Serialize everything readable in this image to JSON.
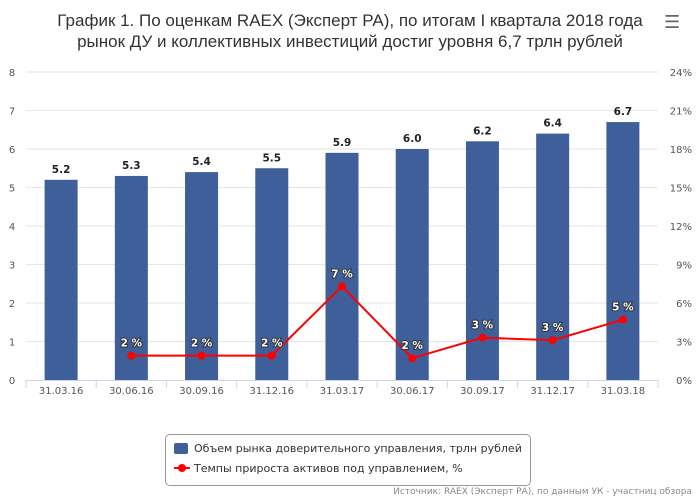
{
  "title": "График 1. По оценкам RAEX (Эксперт РА), по итогам I квартала 2018 года рынок ДУ и коллективных инвестиций достиг уровня 6,7 трлн рублей",
  "menu_icon": "hamburger-icon",
  "source": "Источник: RAEX (Эксперт РА), по данным УК - участниц обзора",
  "chart_data": {
    "type": "bar+line",
    "categories": [
      "31.03.16",
      "30.06.16",
      "30.09.16",
      "31.12.16",
      "31.03.17",
      "30.06.17",
      "30.09.17",
      "31.12.17",
      "31.03.18"
    ],
    "series": [
      {
        "name": "Объем рынка доверительного управления, трлн рублей",
        "type": "bar",
        "axis": "left",
        "color": "#3f5f9a",
        "values": [
          5.2,
          5.3,
          5.4,
          5.5,
          5.9,
          6.0,
          6.2,
          6.4,
          6.7
        ],
        "labels": [
          "5.2",
          "5.3",
          "5.4",
          "5.5",
          "5.9",
          "6.0",
          "6.2",
          "6.4",
          "6.7"
        ]
      },
      {
        "name": "Темпы прироста активов под управлением, %",
        "type": "line",
        "axis": "right",
        "color": "#ff0000",
        "values": [
          null,
          1.9,
          1.9,
          1.9,
          7.3,
          1.7,
          3.3,
          3.1,
          4.7
        ],
        "labels": [
          null,
          "2 %",
          "2 %",
          "2 %",
          "7 %",
          "2 %",
          "3 %",
          "3 %",
          "5 %"
        ]
      }
    ],
    "left_axis": {
      "min": 0,
      "max": 8,
      "ticks": [
        "0",
        "1",
        "2",
        "3",
        "4",
        "5",
        "6",
        "7",
        "8"
      ]
    },
    "right_axis": {
      "min": 0,
      "max": 24,
      "ticks": [
        "0%",
        "3%",
        "6%",
        "9%",
        "12%",
        "15%",
        "18%",
        "21%",
        "24%"
      ]
    },
    "grid": true,
    "legend": "bottom"
  }
}
